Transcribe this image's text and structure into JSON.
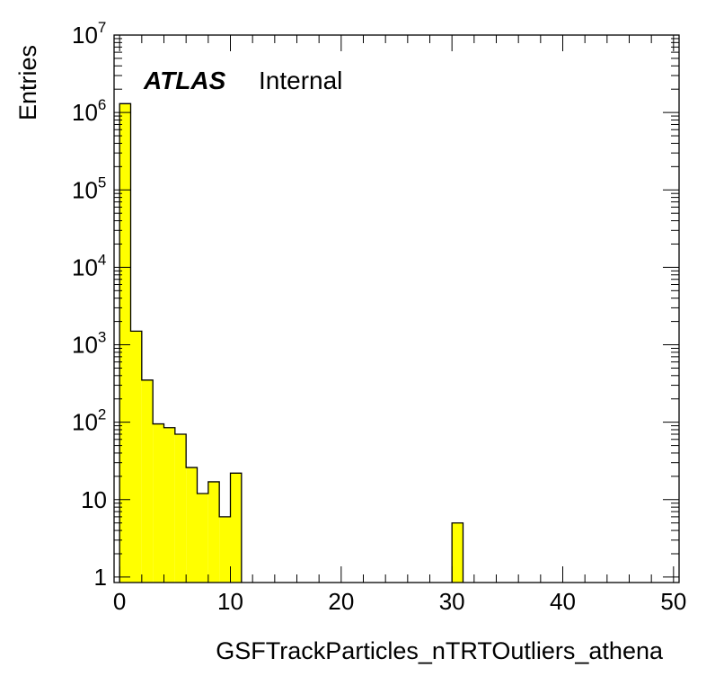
{
  "chart_data": {
    "type": "bar",
    "histogram": true,
    "xlabel": "GSFTrackParticles_nTRTOutliers_athena",
    "ylabel": "Entries",
    "xlim": [
      -0.5,
      50.5
    ],
    "ylim": [
      0.85,
      10000000
    ],
    "yscale": "log",
    "bin_width": 1,
    "bin_lows": [
      0,
      1,
      2,
      3,
      4,
      5,
      6,
      7,
      8,
      9,
      10,
      30
    ],
    "values": [
      1300000,
      1500,
      350,
      95,
      85,
      70,
      26,
      12,
      17,
      6,
      22,
      5
    ],
    "fill_color": "#ffff00",
    "line_color": "#000000",
    "x_ticks": [
      "0",
      "10",
      "20",
      "30",
      "40",
      "50"
    ],
    "y_ticks": [
      {
        "base": "1",
        "exp": ""
      },
      {
        "base": "10",
        "exp": ""
      },
      {
        "base": "10",
        "exp": "2"
      },
      {
        "base": "10",
        "exp": "3"
      },
      {
        "base": "10",
        "exp": "4"
      },
      {
        "base": "10",
        "exp": "5"
      },
      {
        "base": "10",
        "exp": "6"
      },
      {
        "base": "10",
        "exp": "7"
      }
    ],
    "label_atlas": "ATLAS",
    "label_status": "Internal",
    "grid": false
  }
}
